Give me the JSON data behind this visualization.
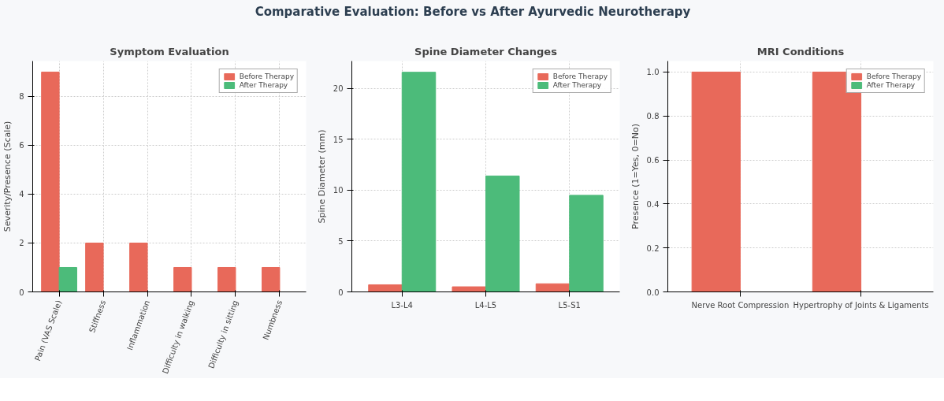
{
  "chart_data": [
    {
      "type": "bar",
      "title": "Symptom Evaluation",
      "ylabel": "Severity/Presence (Scale)",
      "annotations": [
        "Comparative Evaluation: Before vs After Ayurvedic Neurotherapy"
      ],
      "categories": [
        "Pain (VAS Scale)",
        "Stiffness",
        "Inflammation",
        "Difficulty in walking",
        "Difficulty in sitting",
        "Numbness"
      ],
      "series": [
        {
          "name": "Before Therapy",
          "color": "#e8695a",
          "values": [
            9,
            2,
            2,
            1,
            1,
            1
          ]
        },
        {
          "name": "After Therapy",
          "color": "#4cbb7a",
          "values": [
            1,
            null,
            null,
            null,
            null,
            null
          ]
        }
      ],
      "ylim": [
        0,
        9.45
      ],
      "yticks": [
        0,
        2,
        4,
        6,
        8
      ],
      "grid": true,
      "legend": "top right"
    },
    {
      "type": "bar",
      "title": "Spine Diameter Changes",
      "ylabel": "Spine Diameter (mm)",
      "categories": [
        "L3-L4",
        "L4-L5",
        "L5-S1"
      ],
      "series": [
        {
          "name": "Before Therapy",
          "color": "#e8695a",
          "values": [
            0.7,
            0.5,
            0.8
          ]
        },
        {
          "name": "After Therapy",
          "color": "#4cbb7a",
          "values": [
            21.6,
            11.4,
            9.5
          ]
        }
      ],
      "ylim": [
        0,
        22.7
      ],
      "yticks": [
        0,
        5,
        10,
        15,
        20
      ],
      "grid": true,
      "legend": "top right"
    },
    {
      "type": "bar",
      "title": "MRI Conditions",
      "ylabel": "Presence (1=Yes, 0=No)",
      "categories": [
        "Nerve Root Compression",
        "Hypertrophy of Joints & Ligaments"
      ],
      "series": [
        {
          "name": "Before Therapy",
          "color": "#e8695a",
          "values": [
            1,
            1
          ]
        },
        {
          "name": "After Therapy",
          "color": "#4cbb7a",
          "values": [
            0,
            0
          ]
        }
      ],
      "ylim": [
        0,
        1.05
      ],
      "yticks": [
        {
          "value": 0,
          "label": "0.0"
        },
        {
          "value": 0.2,
          "label": "0.2"
        },
        {
          "value": 0.4,
          "label": "0.4"
        },
        {
          "value": 0.6,
          "label": "0.6"
        },
        {
          "value": 0.8,
          "label": "0.8"
        },
        {
          "value": 1,
          "label": "1.0"
        }
      ],
      "grid": true,
      "legend": "top right"
    }
  ]
}
